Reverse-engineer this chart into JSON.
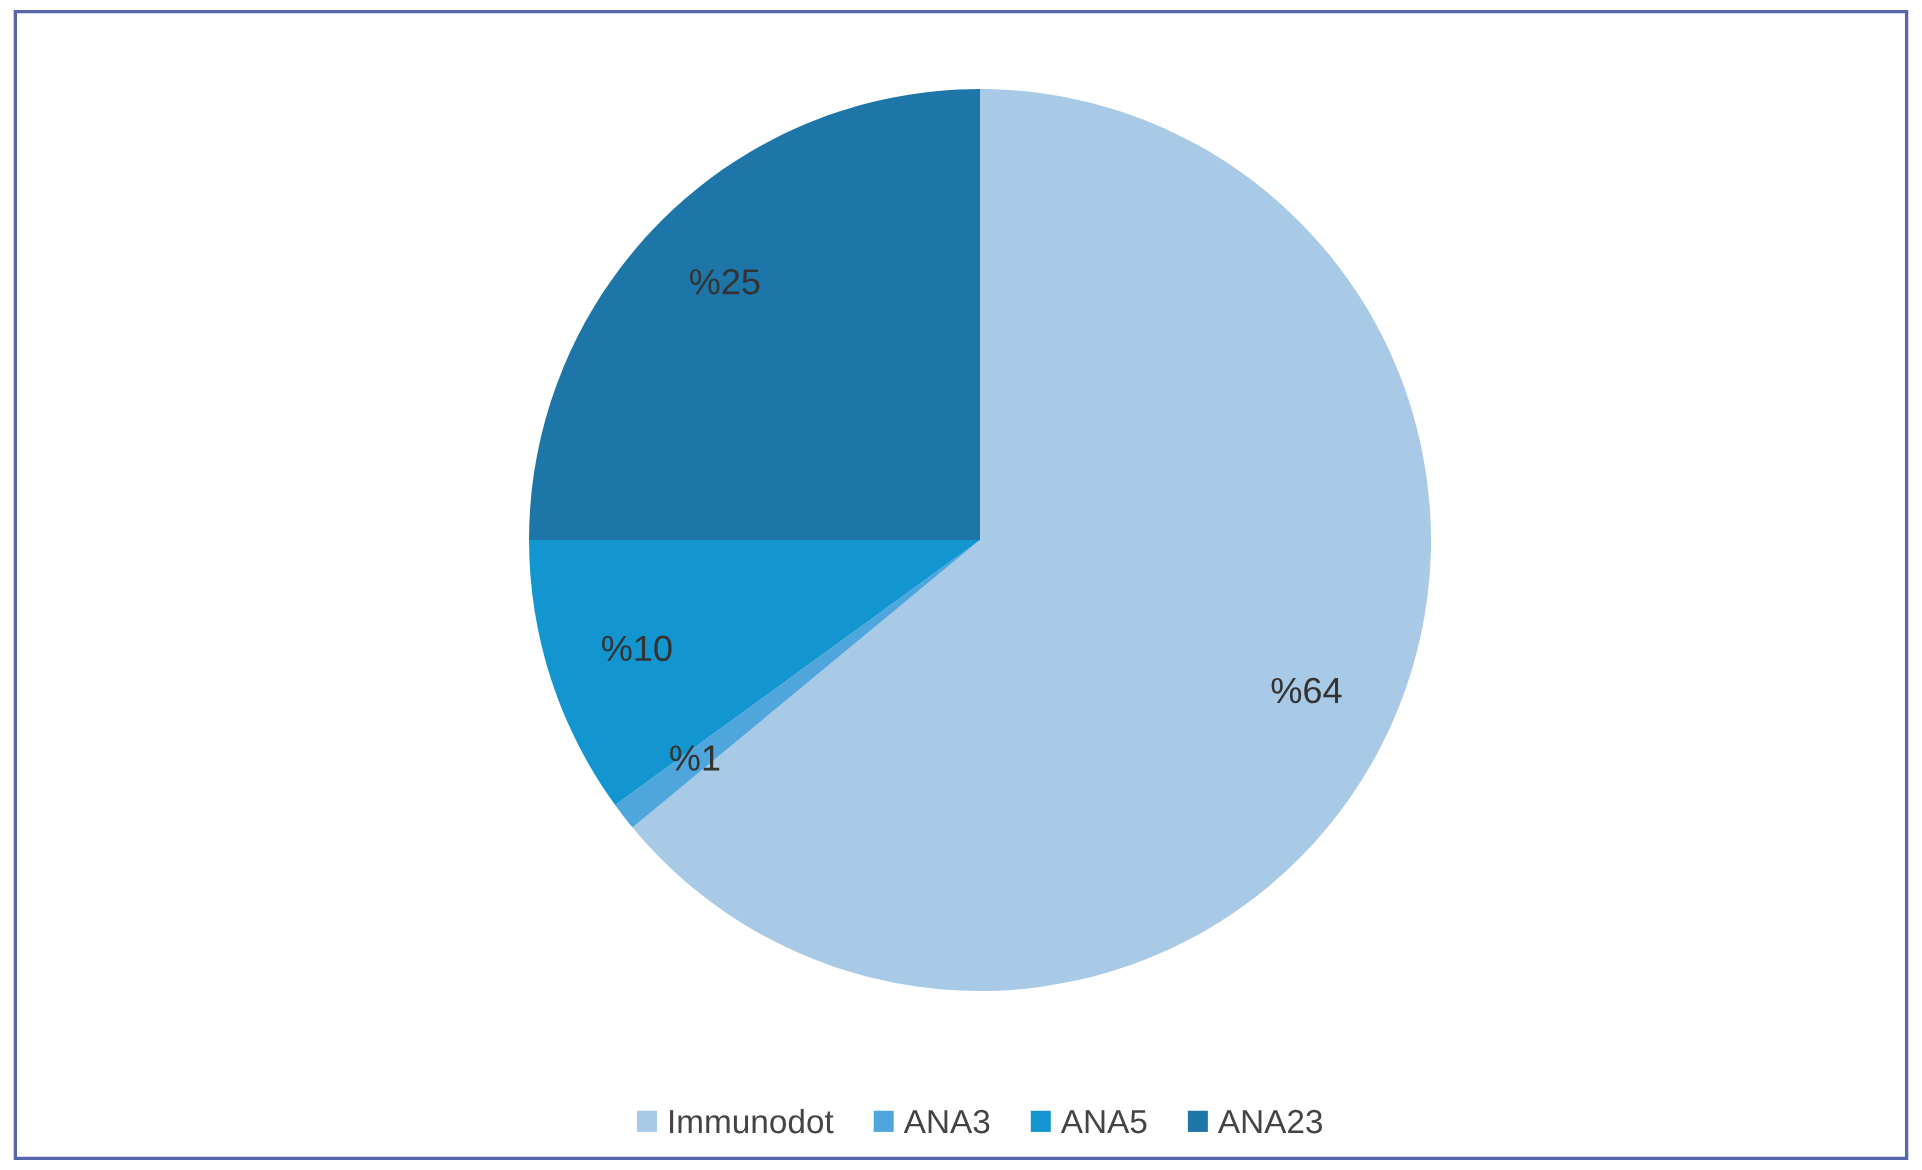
{
  "chart_data": {
    "type": "pie",
    "categories": [
      "Immunodot",
      "ANA3",
      "ANA5",
      "ANA23"
    ],
    "values": [
      64,
      1,
      10,
      25
    ],
    "colors": [
      "#a8cae6",
      "#4ea6dc",
      "#1396d0",
      "#1e76a8"
    ],
    "value_labels": [
      "%64",
      "%1",
      "%10",
      "%25"
    ],
    "legend": "bottom"
  }
}
